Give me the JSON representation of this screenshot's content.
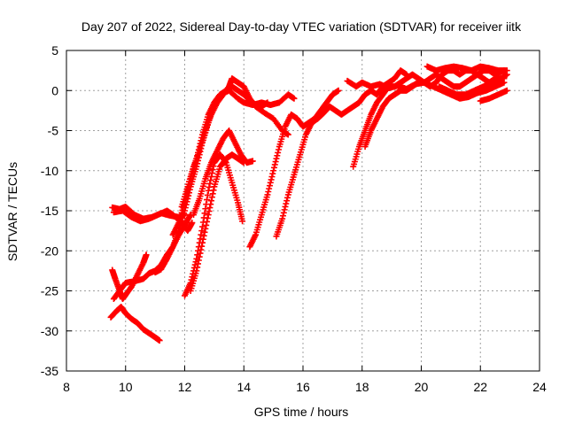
{
  "chart_data": {
    "type": "scatter",
    "title": "Day 207 of 2022, Sidereal Day-to-day VTEC variation (SDTVAR) for receiver iitk",
    "xlabel": "GPS time / hours",
    "ylabel": "SDTVAR / TECUs",
    "xlim": [
      8,
      24
    ],
    "ylim": [
      -35,
      5
    ],
    "xticks": [
      8,
      10,
      12,
      14,
      16,
      18,
      20,
      22,
      24
    ],
    "yticks": [
      -35,
      -30,
      -25,
      -20,
      -15,
      -10,
      -5,
      0,
      5
    ],
    "grid": true,
    "marker": "+",
    "color": "#ff0000",
    "tracks": [
      {
        "points": [
          [
            9.55,
            -14.6
          ],
          [
            9.8,
            -14.8
          ],
          [
            10.0,
            -14.5
          ],
          [
            10.3,
            -15.5
          ],
          [
            10.6,
            -16.0
          ],
          [
            10.9,
            -15.8
          ],
          [
            11.2,
            -15.3
          ],
          [
            11.5,
            -15.6
          ],
          [
            11.8,
            -15.8
          ],
          [
            12.0,
            -15.5
          ]
        ]
      },
      {
        "points": [
          [
            9.6,
            -15.2
          ],
          [
            9.9,
            -15.0
          ],
          [
            10.2,
            -15.8
          ],
          [
            10.5,
            -16.3
          ],
          [
            10.8,
            -16.0
          ],
          [
            11.1,
            -15.5
          ],
          [
            11.4,
            -15.0
          ],
          [
            11.6,
            -15.5
          ],
          [
            11.9,
            -16.5
          ],
          [
            12.1,
            -17.5
          ],
          [
            12.25,
            -16.5
          ]
        ]
      },
      {
        "points": [
          [
            9.55,
            -22.4
          ],
          [
            9.65,
            -23.5
          ],
          [
            9.8,
            -25.0
          ],
          [
            9.9,
            -26.0
          ],
          [
            10.0,
            -25.5
          ],
          [
            10.2,
            -24.5
          ],
          [
            10.4,
            -23.0
          ],
          [
            10.6,
            -21.5
          ],
          [
            10.7,
            -20.5
          ]
        ]
      },
      {
        "points": [
          [
            9.5,
            -28.3
          ],
          [
            9.7,
            -27.5
          ],
          [
            9.85,
            -27.0
          ],
          [
            10.0,
            -27.8
          ],
          [
            10.2,
            -28.5
          ],
          [
            10.4,
            -29.0
          ],
          [
            10.6,
            -29.8
          ],
          [
            10.8,
            -30.3
          ],
          [
            11.0,
            -30.8
          ],
          [
            11.15,
            -31.2
          ]
        ]
      },
      {
        "points": [
          [
            9.6,
            -26.0
          ],
          [
            9.8,
            -25.0
          ],
          [
            10.0,
            -24.0
          ],
          [
            10.3,
            -23.8
          ],
          [
            10.6,
            -23.5
          ],
          [
            10.8,
            -22.8
          ],
          [
            11.0,
            -22.5
          ],
          [
            11.2,
            -21.8
          ],
          [
            11.4,
            -20.5
          ],
          [
            11.6,
            -19.5
          ],
          [
            11.8,
            -18.0
          ],
          [
            12.0,
            -16.8
          ],
          [
            12.2,
            -15.5
          ]
        ]
      },
      {
        "points": [
          [
            11.0,
            -22.7
          ],
          [
            11.2,
            -22.3
          ],
          [
            11.4,
            -21.0
          ],
          [
            11.6,
            -19.5
          ],
          [
            11.8,
            -17.5
          ],
          [
            12.0,
            -15.0
          ],
          [
            12.2,
            -12.0
          ],
          [
            12.4,
            -9.5
          ],
          [
            12.6,
            -6.5
          ],
          [
            12.8,
            -4.0
          ],
          [
            13.0,
            -1.5
          ],
          [
            13.2,
            -0.5
          ],
          [
            13.5,
            0.0
          ],
          [
            13.8,
            -1.0
          ],
          [
            14.0,
            -1.5
          ],
          [
            14.3,
            -1.8
          ],
          [
            14.6,
            -1.5
          ],
          [
            14.9,
            -1.8
          ],
          [
            15.2,
            -1.5
          ],
          [
            15.5,
            -0.5
          ],
          [
            15.7,
            -1.0
          ]
        ]
      },
      {
        "points": [
          [
            11.6,
            -18.0
          ],
          [
            11.8,
            -16.5
          ],
          [
            12.0,
            -14.0
          ],
          [
            12.2,
            -11.0
          ],
          [
            12.4,
            -8.5
          ],
          [
            12.6,
            -5.5
          ],
          [
            12.8,
            -3.0
          ],
          [
            13.0,
            -1.5
          ],
          [
            13.2,
            -0.5
          ],
          [
            13.4,
            0.0
          ],
          [
            13.6,
            0.5
          ],
          [
            13.8,
            0.0
          ],
          [
            14.0,
            -0.5
          ],
          [
            14.2,
            -1.2
          ],
          [
            14.4,
            -1.8
          ],
          [
            14.6,
            -2.0
          ],
          [
            14.8,
            -1.5
          ]
        ]
      },
      {
        "points": [
          [
            11.9,
            -14.5
          ],
          [
            12.1,
            -12.0
          ],
          [
            12.3,
            -9.5
          ],
          [
            12.5,
            -7.5
          ],
          [
            12.7,
            -5.0
          ],
          [
            12.9,
            -3.0
          ],
          [
            13.1,
            -1.5
          ],
          [
            13.3,
            -0.5
          ],
          [
            13.5,
            0.5
          ],
          [
            13.6,
            1.5
          ],
          [
            13.8,
            1.0
          ],
          [
            14.0,
            0.5
          ],
          [
            14.2,
            -1.0
          ],
          [
            14.4,
            -2.0
          ],
          [
            14.7,
            -2.8
          ],
          [
            15.0,
            -3.5
          ],
          [
            15.3,
            -5.0
          ],
          [
            15.5,
            -5.5
          ]
        ]
      },
      {
        "points": [
          [
            12.3,
            -15.5
          ],
          [
            12.5,
            -13.5
          ],
          [
            12.7,
            -11.0
          ],
          [
            12.9,
            -9.0
          ],
          [
            13.1,
            -7.5
          ],
          [
            13.3,
            -6.0
          ],
          [
            13.5,
            -5.0
          ],
          [
            13.7,
            -6.5
          ],
          [
            13.9,
            -8.0
          ],
          [
            14.1,
            -9.0
          ],
          [
            14.3,
            -8.8
          ]
        ]
      },
      {
        "points": [
          [
            12.0,
            -25.6
          ],
          [
            12.2,
            -24.0
          ],
          [
            12.4,
            -21.0
          ],
          [
            12.6,
            -17.0
          ],
          [
            12.8,
            -12.5
          ],
          [
            13.0,
            -9.0
          ],
          [
            13.2,
            -8.0
          ],
          [
            13.4,
            -9.0
          ],
          [
            13.6,
            -11.5
          ],
          [
            13.8,
            -14.0
          ],
          [
            13.95,
            -16.3
          ]
        ]
      },
      {
        "points": [
          [
            12.2,
            -25.0
          ],
          [
            12.4,
            -22.5
          ],
          [
            12.6,
            -19.0
          ],
          [
            12.8,
            -15.5
          ],
          [
            13.0,
            -12.0
          ],
          [
            13.2,
            -9.5
          ],
          [
            13.4,
            -8.5
          ],
          [
            13.6,
            -8.0
          ],
          [
            13.8,
            -8.5
          ],
          [
            14.0,
            -9.0
          ]
        ]
      },
      {
        "points": [
          [
            14.2,
            -19.5
          ],
          [
            14.4,
            -18.0
          ],
          [
            14.6,
            -15.5
          ],
          [
            14.8,
            -13.0
          ],
          [
            15.0,
            -10.0
          ],
          [
            15.2,
            -7.0
          ],
          [
            15.4,
            -4.5
          ],
          [
            15.6,
            -3.0
          ],
          [
            15.8,
            -3.5
          ],
          [
            16.0,
            -4.5
          ],
          [
            16.2,
            -4.0
          ],
          [
            16.4,
            -3.5
          ],
          [
            16.6,
            -2.5
          ],
          [
            16.8,
            -1.5
          ],
          [
            17.0,
            -0.5
          ],
          [
            17.2,
            0.0
          ]
        ]
      },
      {
        "points": [
          [
            15.1,
            -18.2
          ],
          [
            15.3,
            -16.0
          ],
          [
            15.5,
            -13.0
          ],
          [
            15.7,
            -10.5
          ],
          [
            15.9,
            -8.0
          ],
          [
            16.1,
            -5.5
          ],
          [
            16.3,
            -4.0
          ],
          [
            16.5,
            -3.5
          ],
          [
            16.7,
            -2.8
          ],
          [
            16.9,
            -2.0
          ],
          [
            17.1,
            -2.5
          ],
          [
            17.3,
            -3.0
          ],
          [
            17.5,
            -2.5
          ],
          [
            17.7,
            -2.0
          ],
          [
            17.9,
            -1.5
          ],
          [
            18.1,
            -0.5
          ],
          [
            18.3,
            0.0
          ],
          [
            18.5,
            -0.5
          ],
          [
            18.7,
            0.5
          ],
          [
            18.9,
            1.0
          ],
          [
            19.1,
            1.5
          ],
          [
            19.3,
            2.5
          ],
          [
            19.5,
            2.0
          ]
        ]
      },
      {
        "points": [
          [
            17.7,
            -9.5
          ],
          [
            17.9,
            -7.0
          ],
          [
            18.1,
            -5.0
          ],
          [
            18.3,
            -3.0
          ],
          [
            18.5,
            -1.5
          ],
          [
            18.7,
            -0.5
          ],
          [
            18.9,
            0.5
          ],
          [
            19.1,
            0.5
          ],
          [
            19.3,
            1.0
          ],
          [
            19.5,
            1.5
          ],
          [
            19.7,
            2.0
          ],
          [
            19.9,
            1.5
          ],
          [
            20.1,
            1.0
          ],
          [
            20.3,
            0.5
          ],
          [
            20.5,
            1.0
          ],
          [
            20.7,
            2.0
          ],
          [
            20.9,
            2.5
          ],
          [
            21.1,
            2.5
          ],
          [
            21.3,
            2.0
          ],
          [
            21.5,
            2.5
          ],
          [
            21.7,
            2.5
          ],
          [
            21.9,
            2.0
          ],
          [
            22.1,
            2.5
          ],
          [
            22.3,
            2.5
          ],
          [
            22.5,
            2.0
          ],
          [
            22.8,
            2.5
          ]
        ]
      },
      {
        "points": [
          [
            18.1,
            -7.0
          ],
          [
            18.3,
            -5.0
          ],
          [
            18.5,
            -3.5
          ],
          [
            18.7,
            -2.0
          ],
          [
            18.9,
            -1.0
          ],
          [
            19.1,
            -0.5
          ],
          [
            19.3,
            0.0
          ],
          [
            19.5,
            0.0
          ],
          [
            19.7,
            0.5
          ],
          [
            19.9,
            1.0
          ],
          [
            20.1,
            1.0
          ],
          [
            20.3,
            1.5
          ],
          [
            20.5,
            2.0
          ],
          [
            20.7,
            1.5
          ],
          [
            20.9,
            1.0
          ],
          [
            21.1,
            0.5
          ],
          [
            21.3,
            0.5
          ],
          [
            21.5,
            1.0
          ],
          [
            21.7,
            1.5
          ],
          [
            21.9,
            2.0
          ],
          [
            22.1,
            1.5
          ],
          [
            22.3,
            1.0
          ],
          [
            22.5,
            1.5
          ],
          [
            22.8,
            1.5
          ]
        ]
      },
      {
        "points": [
          [
            17.5,
            1.2
          ],
          [
            17.8,
            0.5
          ],
          [
            18.0,
            1.0
          ],
          [
            18.3,
            0.5
          ],
          [
            18.6,
            0.8
          ],
          [
            18.9,
            0.3
          ],
          [
            19.2,
            0.6
          ],
          [
            19.5,
            0.2
          ],
          [
            19.8,
            0.8
          ],
          [
            20.1,
            1.0
          ],
          [
            20.4,
            0.5
          ],
          [
            20.7,
            0.0
          ],
          [
            21.0,
            -0.5
          ],
          [
            21.3,
            -1.0
          ],
          [
            21.6,
            -0.8
          ],
          [
            21.9,
            -0.3
          ],
          [
            22.2,
            0.0
          ],
          [
            22.5,
            0.5
          ],
          [
            22.8,
            1.0
          ]
        ]
      },
      {
        "points": [
          [
            20.2,
            3.0
          ],
          [
            20.5,
            2.5
          ],
          [
            20.8,
            2.8
          ],
          [
            21.1,
            3.0
          ],
          [
            21.4,
            2.8
          ],
          [
            21.7,
            2.5
          ],
          [
            22.0,
            3.0
          ],
          [
            22.3,
            2.8
          ],
          [
            22.6,
            2.5
          ],
          [
            22.9,
            2.5
          ]
        ]
      },
      {
        "points": [
          [
            20.6,
            0.5
          ],
          [
            20.9,
            0.0
          ],
          [
            21.2,
            -0.5
          ],
          [
            21.5,
            -0.5
          ],
          [
            21.8,
            0.0
          ],
          [
            22.1,
            0.5
          ],
          [
            22.4,
            1.0
          ],
          [
            22.7,
            1.5
          ],
          [
            22.9,
            2.0
          ]
        ]
      },
      {
        "points": [
          [
            22.0,
            -1.3
          ],
          [
            22.3,
            -1.0
          ],
          [
            22.6,
            -0.5
          ],
          [
            22.9,
            0.0
          ]
        ]
      }
    ]
  }
}
